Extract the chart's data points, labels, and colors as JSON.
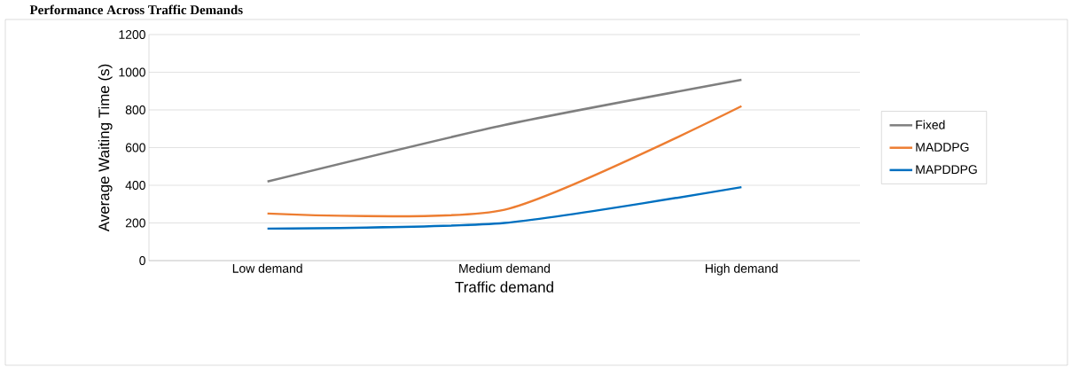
{
  "chart_data": {
    "type": "line",
    "title": "Performance Across Traffic Demands",
    "xlabel": "Traffic demand",
    "ylabel": "Average Waiting Time (s)",
    "categories": [
      "Low demand",
      "Medium demand",
      "High demand"
    ],
    "series": [
      {
        "name": "Fixed",
        "color": "#7f7f7f",
        "values": [
          420,
          720,
          960
        ]
      },
      {
        "name": "MADDPG",
        "color": "#ed7d31",
        "values": [
          250,
          270,
          820
        ]
      },
      {
        "name": "MAPDDPG",
        "color": "#0070c0",
        "values": [
          170,
          200,
          390
        ]
      }
    ],
    "ylim": [
      0,
      1200
    ],
    "yticks": [
      0,
      200,
      400,
      600,
      800,
      1000,
      1200
    ],
    "grid": "y",
    "legend": "right",
    "marker": "none",
    "line_style": "solid"
  }
}
